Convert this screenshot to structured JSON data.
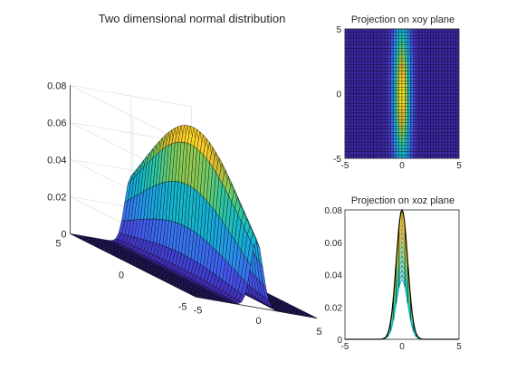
{
  "colors": {
    "surface_low": "#3e26a8",
    "surface_mid": "#2fbeaa",
    "surface_high": "#f9fb15",
    "grid_line": "#000000",
    "axis": "#262626"
  },
  "chart_data": [
    {
      "type": "surface",
      "title": "Two dimensional normal distribution",
      "distribution": {
        "mean_x": 0,
        "mean_y": 0,
        "sigma_x": 0.5,
        "sigma_y": 4,
        "peak": 0.08
      },
      "xlim": [
        -5,
        5
      ],
      "ylim": [
        -5,
        5
      ],
      "zlim": [
        0,
        0.08
      ],
      "x_ticks": [
        "-5",
        "0",
        "5"
      ],
      "y_ticks": [
        "-5",
        "0",
        "5"
      ],
      "z_ticks": [
        "0",
        "0.02",
        "0.04",
        "0.06",
        "0.08"
      ],
      "grid": true,
      "colormap": "parula"
    },
    {
      "type": "heatmap",
      "title": "Projection on xoy plane",
      "xlim": [
        -5,
        5
      ],
      "ylim": [
        -5,
        5
      ],
      "x_ticks": [
        "-5",
        "0",
        "5"
      ],
      "y_ticks": [
        "-5",
        "0",
        "5"
      ],
      "colormap": "parula"
    },
    {
      "type": "line",
      "title": "Projection on xoz plane",
      "xlim": [
        -5,
        5
      ],
      "ylim": [
        0,
        0.08
      ],
      "x_ticks": [
        "-5",
        "0",
        "5"
      ],
      "y_ticks": [
        "0",
        "0.02",
        "0.04",
        "0.06",
        "0.08"
      ],
      "colormap": "parula"
    }
  ]
}
